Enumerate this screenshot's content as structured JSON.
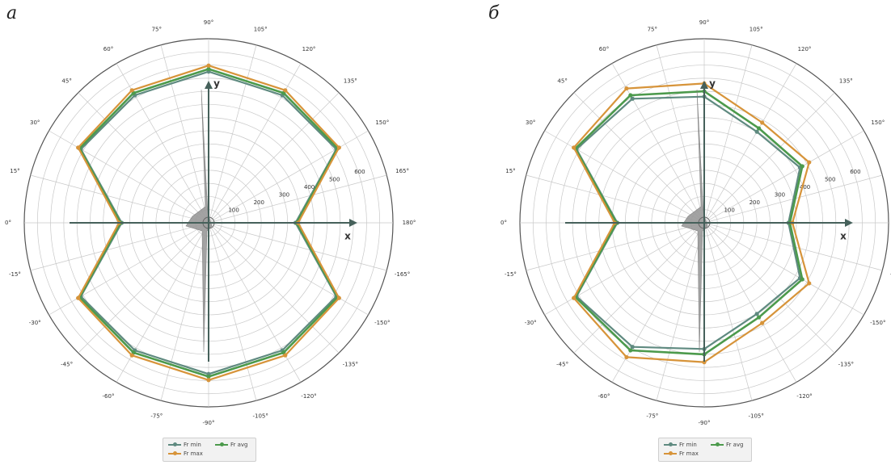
{
  "panels": [
    {
      "label": "а",
      "chart_data": {
        "type": "line",
        "projection": "polar",
        "radial_ticks": [
          "100",
          "200",
          "300",
          "400",
          "500",
          "600"
        ],
        "rlim": [
          0,
          700
        ],
        "angle_tick_labels": [
          "0°",
          "15°",
          "30°",
          "45°",
          "60°",
          "75°",
          "90°",
          "105°",
          "120°",
          "135°",
          "150°",
          "165°",
          "180°",
          "-165°",
          "-150°",
          "-135°",
          "-120°",
          "-105°",
          "-90°",
          "-75°",
          "-60°",
          "-45°",
          "-30°",
          "-15°"
        ],
        "axis_labels": {
          "x": "x",
          "y": "y"
        },
        "series": [
          {
            "name": "Fr min",
            "color": "#5f8a80",
            "points": [
              {
                "angle": 0,
                "r": 330
              },
              {
                "angle": 30,
                "r": 560
              },
              {
                "angle": 60,
                "r": 560
              },
              {
                "angle": 90,
                "r": 575
              },
              {
                "angle": 120,
                "r": 560
              },
              {
                "angle": 150,
                "r": 560
              },
              {
                "angle": 180,
                "r": 330
              },
              {
                "angle": -150,
                "r": 560
              },
              {
                "angle": -120,
                "r": 560
              },
              {
                "angle": -90,
                "r": 575
              },
              {
                "angle": -60,
                "r": 560
              },
              {
                "angle": -30,
                "r": 560
              }
            ]
          },
          {
            "name": "Fr avg",
            "color": "#4c9a4c",
            "points": [
              {
                "angle": 0,
                "r": 335
              },
              {
                "angle": 30,
                "r": 566
              },
              {
                "angle": 60,
                "r": 570
              },
              {
                "angle": 90,
                "r": 585
              },
              {
                "angle": 120,
                "r": 570
              },
              {
                "angle": 150,
                "r": 566
              },
              {
                "angle": 180,
                "r": 335
              },
              {
                "angle": -150,
                "r": 566
              },
              {
                "angle": -120,
                "r": 570
              },
              {
                "angle": -90,
                "r": 585
              },
              {
                "angle": -60,
                "r": 570
              },
              {
                "angle": -30,
                "r": 566
              }
            ]
          },
          {
            "name": "Fr max",
            "color": "#d7943a",
            "points": [
              {
                "angle": 0,
                "r": 340
              },
              {
                "angle": 30,
                "r": 572
              },
              {
                "angle": 60,
                "r": 582
              },
              {
                "angle": 90,
                "r": 598
              },
              {
                "angle": 120,
                "r": 582
              },
              {
                "angle": 150,
                "r": 572
              },
              {
                "angle": 180,
                "r": 340
              },
              {
                "angle": -150,
                "r": 572
              },
              {
                "angle": -120,
                "r": 582
              },
              {
                "angle": -90,
                "r": 598
              },
              {
                "angle": -60,
                "r": 582
              },
              {
                "angle": -30,
                "r": 572
              }
            ]
          }
        ],
        "legend": {
          "placement": "bottom-center",
          "entries": [
            "Fr min",
            "Fr avg",
            "Fr max"
          ]
        }
      }
    },
    {
      "label": "б",
      "chart_data": {
        "type": "line",
        "projection": "polar",
        "radial_ticks": [
          "100",
          "200",
          "300",
          "400",
          "500",
          "600"
        ],
        "rlim": [
          0,
          700
        ],
        "angle_tick_labels": [
          "0°",
          "15°",
          "30°",
          "45°",
          "60°",
          "75°",
          "90°",
          "105°",
          "120°",
          "135°",
          "150°",
          "165°",
          "180°",
          "-165°",
          "-150°",
          "-135°",
          "-120°",
          "-105°",
          "-90°",
          "-75°",
          "-60°",
          "-45°",
          "-30°",
          "-15°"
        ],
        "axis_labels": {
          "x": "x",
          "y": "y"
        },
        "series": [
          {
            "name": "Fr min",
            "color": "#5f8a80",
            "points": [
              {
                "angle": 0,
                "r": 330
              },
              {
                "angle": 30,
                "r": 560
              },
              {
                "angle": 60,
                "r": 545
              },
              {
                "angle": 90,
                "r": 480
              },
              {
                "angle": 120,
                "r": 400
              },
              {
                "angle": 150,
                "r": 420
              },
              {
                "angle": 180,
                "r": 320
              },
              {
                "angle": -150,
                "r": 420
              },
              {
                "angle": -120,
                "r": 400
              },
              {
                "angle": -90,
                "r": 480
              },
              {
                "angle": -60,
                "r": 545
              },
              {
                "angle": -30,
                "r": 560
              }
            ]
          },
          {
            "name": "Fr avg",
            "color": "#4c9a4c",
            "points": [
              {
                "angle": 0,
                "r": 333
              },
              {
                "angle": 30,
                "r": 565
              },
              {
                "angle": 60,
                "r": 560
              },
              {
                "angle": 90,
                "r": 500
              },
              {
                "angle": 120,
                "r": 415
              },
              {
                "angle": 150,
                "r": 430
              },
              {
                "angle": 180,
                "r": 325
              },
              {
                "angle": -150,
                "r": 430
              },
              {
                "angle": -120,
                "r": 415
              },
              {
                "angle": -90,
                "r": 500
              },
              {
                "angle": -60,
                "r": 560
              },
              {
                "angle": -30,
                "r": 565
              }
            ]
          },
          {
            "name": "Fr max",
            "color": "#d7943a",
            "points": [
              {
                "angle": 0,
                "r": 340
              },
              {
                "angle": 30,
                "r": 572
              },
              {
                "angle": 60,
                "r": 590
              },
              {
                "angle": 90,
                "r": 530
              },
              {
                "angle": 120,
                "r": 440
              },
              {
                "angle": 150,
                "r": 460
              },
              {
                "angle": 180,
                "r": 335
              },
              {
                "angle": -150,
                "r": 460
              },
              {
                "angle": -120,
                "r": 440
              },
              {
                "angle": -90,
                "r": 530
              },
              {
                "angle": -60,
                "r": 590
              },
              {
                "angle": -30,
                "r": 572
              }
            ]
          }
        ],
        "legend": {
          "placement": "bottom-center",
          "entries": [
            "Fr min",
            "Fr avg",
            "Fr max"
          ]
        }
      }
    }
  ]
}
